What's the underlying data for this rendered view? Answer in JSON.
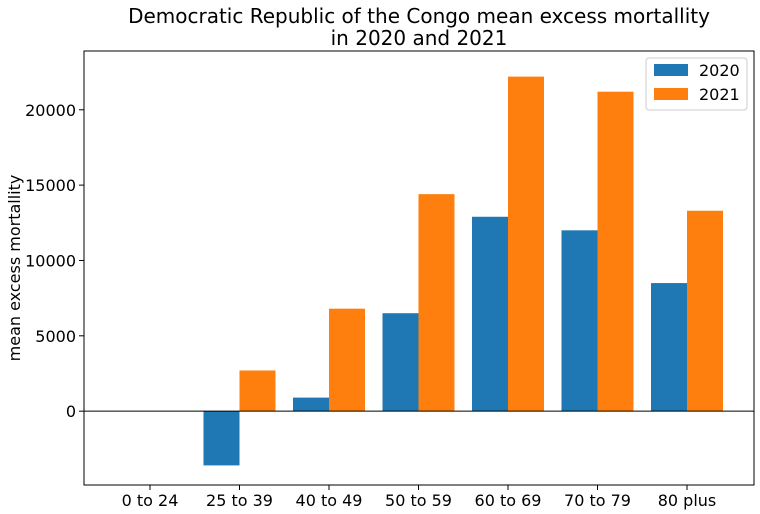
{
  "chart_data": {
    "type": "bar",
    "title_line1": "Democratic Republic of the Congo mean excess mortallity",
    "title_line2": "in 2020 and 2021",
    "xlabel": "",
    "ylabel": "mean excess mortallity",
    "categories": [
      "0 to 24",
      "25 to 39",
      "40 to 49",
      "50 to 59",
      "60 to 69",
      "70 to 79",
      "80 plus"
    ],
    "series": [
      {
        "name": "2020",
        "color": "#1f77b4",
        "values": [
          0,
          -3600,
          900,
          6500,
          12900,
          12000,
          8500
        ]
      },
      {
        "name": "2021",
        "color": "#ff7f0e",
        "values": [
          0,
          2700,
          6800,
          14400,
          22200,
          21200,
          13300
        ]
      }
    ],
    "ylim": [
      -4900,
      23900
    ],
    "yticks": [
      0,
      5000,
      10000,
      15000,
      20000
    ],
    "ytick_labels": [
      "0",
      "5000",
      "10000",
      "15000",
      "20000"
    ],
    "zero_line": true,
    "legend_position": "top-right",
    "grid": false
  }
}
